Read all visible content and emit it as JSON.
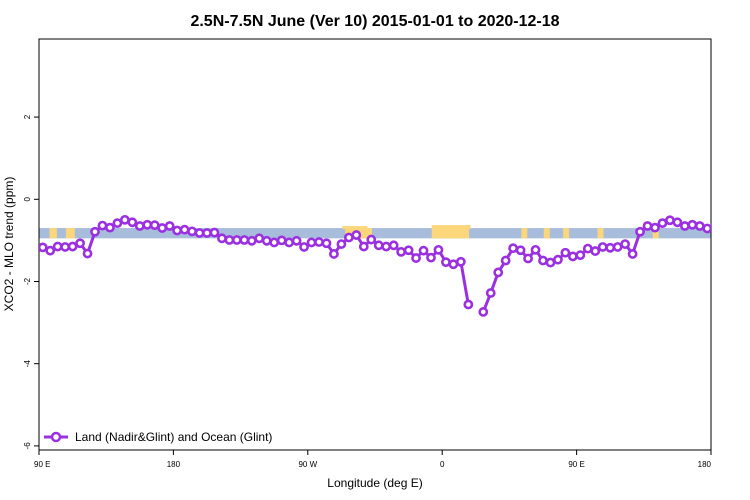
{
  "chart_data": {
    "type": "line",
    "title": "2.5N-7.5N June (Ver 10)   2015-01-01 to 2020-12-18",
    "xlabel": "Longitude (deg E)",
    "ylabel": "XCO2 - MLO trend (ppm)",
    "x_ticks": [
      {
        "value": 90,
        "label": "90 E"
      },
      {
        "value": 180,
        "label": "180"
      },
      {
        "value": 270,
        "label": "90 W"
      },
      {
        "value": 360,
        "label": "0"
      },
      {
        "value": 450,
        "label": "90 E"
      },
      {
        "value": 540,
        "label": "180"
      }
    ],
    "y_ticks": [
      {
        "value": -6,
        "label": "-6"
      },
      {
        "value": -4,
        "label": "-4"
      },
      {
        "value": -2,
        "label": "-2"
      },
      {
        "value": 0,
        "label": "0"
      },
      {
        "value": 2,
        "label": "2"
      }
    ],
    "xlim": [
      90,
      540
    ],
    "ylim": [
      -6.1,
      3.9
    ],
    "background_band": {
      "y_range": [
        -0.95,
        -0.7
      ],
      "ocean_color": "#a7bddb",
      "land_color": "#fbd67a"
    },
    "legend": {
      "position": "bottom-left",
      "entries": [
        "Land (Nadir&Glint) and Ocean (Glint)"
      ]
    },
    "series": [
      {
        "name": "Land (Nadir&Glint) and Ocean (Glint)",
        "color": "#9b30e0",
        "points": [
          [
            92.5,
            -1.17
          ],
          [
            97.5,
            -1.25
          ],
          [
            102.5,
            -1.15
          ],
          [
            107.5,
            -1.16
          ],
          [
            112.5,
            -1.15
          ],
          [
            117.5,
            -1.07
          ],
          [
            122.5,
            -1.32
          ],
          [
            127.5,
            -0.79
          ],
          [
            132.5,
            -0.64
          ],
          [
            137.5,
            -0.69
          ],
          [
            142.5,
            -0.58
          ],
          [
            147.5,
            -0.5
          ],
          [
            152.5,
            -0.56
          ],
          [
            157.5,
            -0.65
          ],
          [
            162.5,
            -0.62
          ],
          [
            167.5,
            -0.63
          ],
          [
            172.5,
            -0.7
          ],
          [
            177.5,
            -0.65
          ],
          [
            182.5,
            -0.76
          ],
          [
            187.5,
            -0.74
          ],
          [
            192.5,
            -0.78
          ],
          [
            197.5,
            -0.82
          ],
          [
            202.5,
            -0.82
          ],
          [
            207.5,
            -0.81
          ],
          [
            212.5,
            -0.95
          ],
          [
            217.5,
            -0.99
          ],
          [
            222.5,
            -0.99
          ],
          [
            227.5,
            -0.99
          ],
          [
            232.5,
            -1.01
          ],
          [
            237.5,
            -0.95
          ],
          [
            242.5,
            -1.01
          ],
          [
            247.5,
            -1.05
          ],
          [
            252.5,
            -1.0
          ],
          [
            257.5,
            -1.05
          ],
          [
            262.5,
            -1.01
          ],
          [
            267.5,
            -1.16
          ],
          [
            272.5,
            -1.05
          ],
          [
            277.5,
            -1.04
          ],
          [
            282.5,
            -1.07
          ],
          [
            287.5,
            -1.33
          ],
          [
            292.5,
            -1.09
          ],
          [
            297.5,
            -0.93
          ],
          [
            302.5,
            -0.87
          ],
          [
            307.5,
            -1.15
          ],
          [
            312.5,
            -0.98
          ],
          [
            317.5,
            -1.12
          ],
          [
            322.5,
            -1.15
          ],
          [
            327.5,
            -1.12
          ],
          [
            332.5,
            -1.28
          ],
          [
            337.5,
            -1.24
          ],
          [
            342.5,
            -1.43
          ],
          [
            347.5,
            -1.25
          ],
          [
            352.5,
            -1.42
          ],
          [
            357.5,
            -1.23
          ],
          [
            362.5,
            -1.53
          ],
          [
            367.5,
            -1.58
          ],
          [
            372.5,
            -1.52
          ],
          [
            377.5,
            -2.56
          ],
          [
            387.5,
            -2.74
          ],
          [
            392.5,
            -2.28
          ],
          [
            397.5,
            -1.78
          ],
          [
            402.5,
            -1.49
          ],
          [
            407.5,
            -1.19
          ],
          [
            412.5,
            -1.24
          ],
          [
            417.5,
            -1.44
          ],
          [
            422.5,
            -1.23
          ],
          [
            427.5,
            -1.49
          ],
          [
            432.5,
            -1.54
          ],
          [
            437.5,
            -1.47
          ],
          [
            442.5,
            -1.3
          ],
          [
            447.5,
            -1.39
          ],
          [
            452.5,
            -1.36
          ],
          [
            457.5,
            -1.2
          ],
          [
            462.5,
            -1.26
          ],
          [
            467.5,
            -1.16
          ],
          [
            472.5,
            -1.18
          ],
          [
            477.5,
            -1.16
          ],
          [
            482.5,
            -1.09
          ],
          [
            487.5,
            -1.33
          ],
          [
            492.5,
            -0.79
          ],
          [
            497.5,
            -0.65
          ],
          [
            502.5,
            -0.69
          ],
          [
            507.5,
            -0.58
          ],
          [
            512.5,
            -0.51
          ],
          [
            517.5,
            -0.56
          ],
          [
            522.5,
            -0.65
          ],
          [
            527.5,
            -0.62
          ],
          [
            532.5,
            -0.65
          ],
          [
            537.5,
            -0.71
          ],
          [
            542.5,
            -0.66
          ]
        ]
      }
    ]
  }
}
